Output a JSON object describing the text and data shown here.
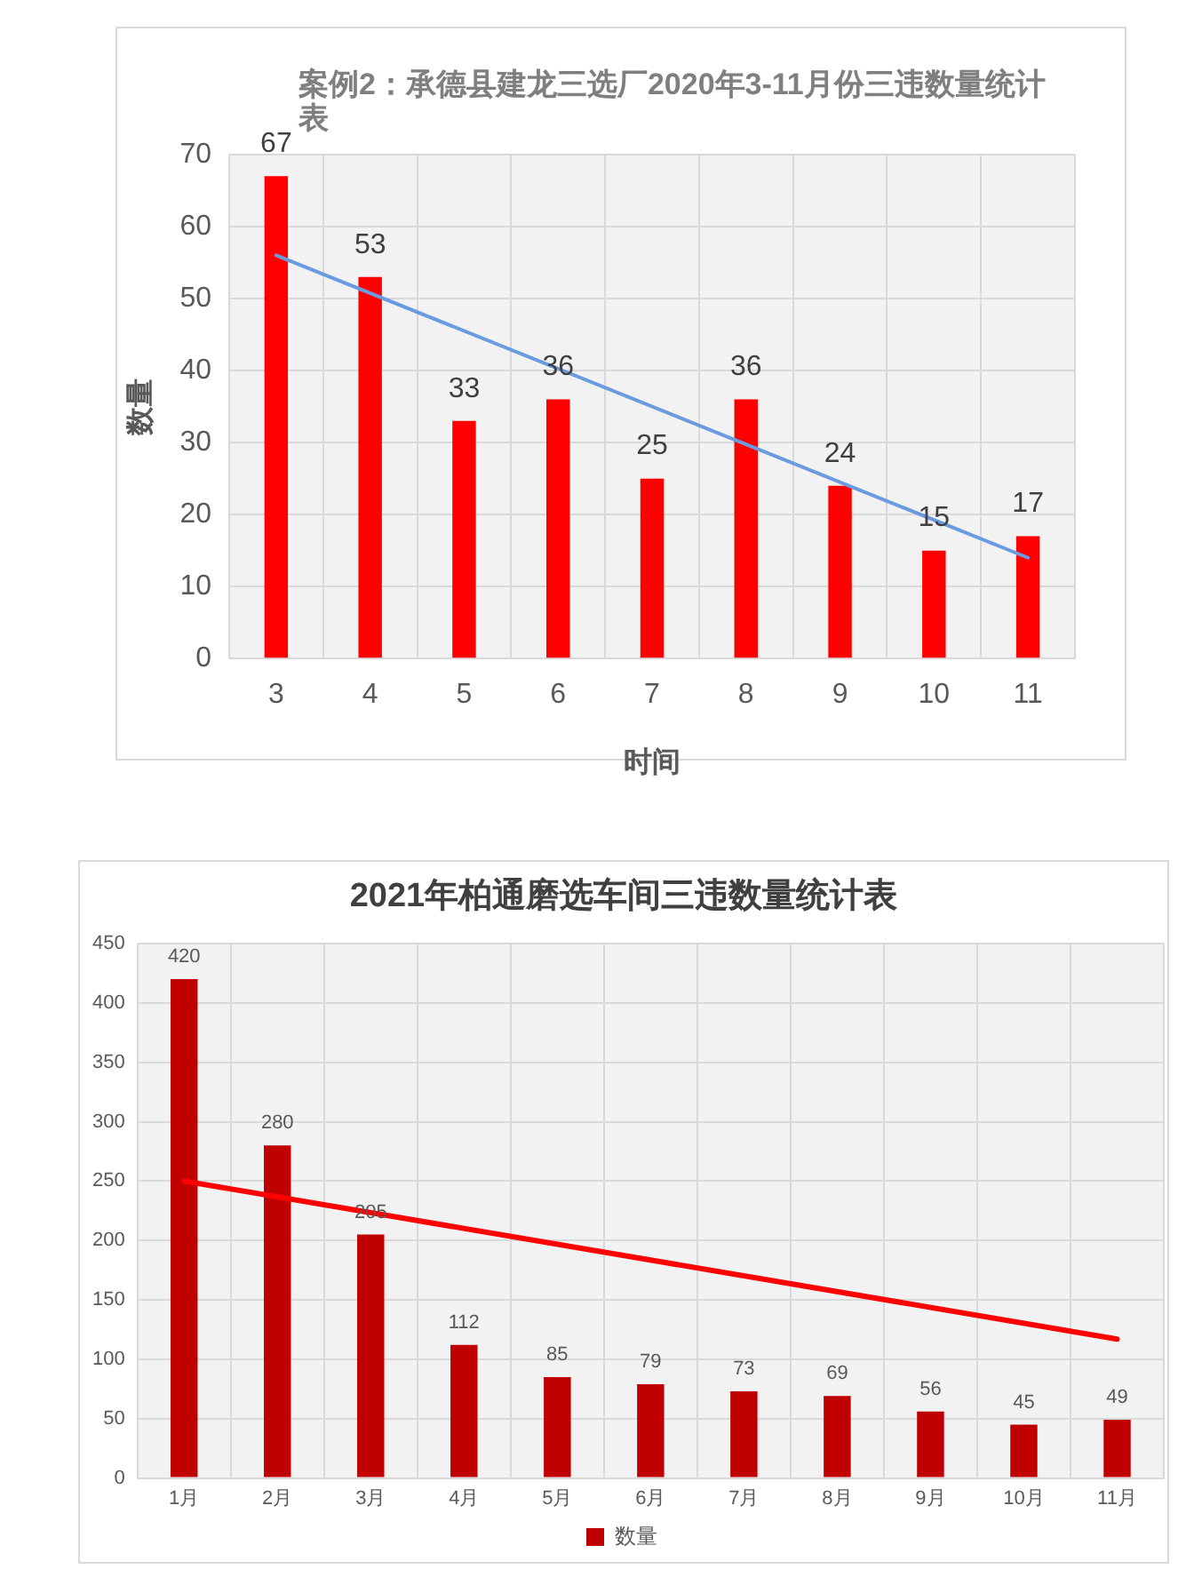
{
  "chart_data": [
    {
      "type": "bar",
      "title": "案例2：承德县建龙三选厂2020年3-11月份三违数量统计表",
      "xlabel": "时间",
      "ylabel": "数量",
      "categories": [
        "3",
        "4",
        "5",
        "6",
        "7",
        "8",
        "9",
        "10",
        "11"
      ],
      "series": [
        {
          "color": "#ff0000",
          "values": [
            67,
            53,
            33,
            36,
            25,
            36,
            24,
            15,
            17
          ],
          "value_labels": [
            "67",
            "53",
            "33",
            "36",
            "25",
            "36",
            "24",
            "15",
            "17"
          ]
        },
        {
          "type": "line",
          "color": "#6a9be0",
          "x": [
            "3",
            "11"
          ],
          "values": [
            56,
            14
          ]
        }
      ],
      "ylim": [
        0,
        70
      ],
      "yticks": [
        0,
        10,
        20,
        30,
        40,
        50,
        60,
        70
      ],
      "grid": true,
      "marker": "none"
    },
    {
      "type": "bar",
      "title": "2021年柏通磨选车间三违数量统计表",
      "categories": [
        "1月",
        "2月",
        "3月",
        "4月",
        "5月",
        "6月",
        "7月",
        "8月",
        "9月",
        "10月",
        "11月"
      ],
      "series": [
        {
          "name": "数量",
          "color": "#c00000",
          "values": [
            420,
            280,
            205,
            112,
            85,
            79,
            73,
            69,
            56,
            45,
            49
          ],
          "value_labels": [
            "420",
            "280",
            "205",
            "112",
            "85",
            "79",
            "73",
            "69",
            "56",
            "45",
            "49"
          ]
        },
        {
          "type": "line",
          "color": "#ff0000",
          "x": [
            "1月",
            "11月"
          ],
          "values": [
            250,
            117
          ]
        }
      ],
      "ylim": [
        0,
        450
      ],
      "yticks": [
        0,
        50,
        100,
        150,
        200,
        250,
        300,
        350,
        400,
        450
      ],
      "grid": true,
      "legend": "bottom",
      "marker": "none"
    }
  ]
}
